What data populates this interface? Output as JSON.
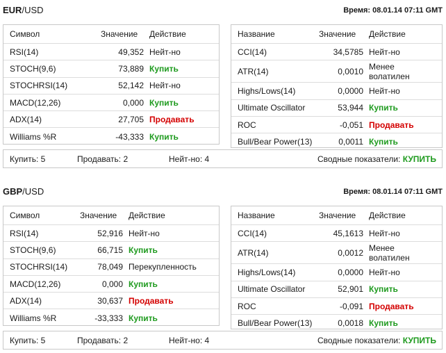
{
  "blocks": [
    {
      "pair_base": "EUR",
      "pair_quote": "/USD",
      "time": "Время: 08.01.14 07:11 GMT",
      "left": {
        "headers": {
          "name": "Символ",
          "value": "Значение",
          "action": "Действие"
        },
        "rows": [
          {
            "name": "RSI(14)",
            "value": "49,352",
            "action": "Нейт-но",
            "type": "neutral"
          },
          {
            "name": "STOCH(9,6)",
            "value": "73,889",
            "action": "Купить",
            "type": "buy"
          },
          {
            "name": "STOCHRSI(14)",
            "value": "52,142",
            "action": "Нейт-но",
            "type": "neutral"
          },
          {
            "name": "MACD(12,26)",
            "value": "0,000",
            "action": "Купить",
            "type": "buy"
          },
          {
            "name": "ADX(14)",
            "value": "27,705",
            "action": "Продавать",
            "type": "sell"
          },
          {
            "name": "Williams %R",
            "value": "-43,333",
            "action": "Купить",
            "type": "buy"
          }
        ]
      },
      "right": {
        "headers": {
          "name": "Название",
          "value": "Значение",
          "action": "Действие"
        },
        "rows": [
          {
            "name": "CCI(14)",
            "value": "34,5785",
            "action": "Нейт-но",
            "type": "neutral"
          },
          {
            "name": "ATR(14)",
            "value": "0,0010",
            "action": "Менее волатилен",
            "type": "neutral"
          },
          {
            "name": "Highs/Lows(14)",
            "value": "0,0000",
            "action": "Нейт-но",
            "type": "neutral"
          },
          {
            "name": "Ultimate Oscillator",
            "value": "53,944",
            "action": "Купить",
            "type": "buy"
          },
          {
            "name": "ROC",
            "value": "-0,051",
            "action": "Продавать",
            "type": "sell"
          },
          {
            "name": "Bull/Bear Power(13)",
            "value": "0,0011",
            "action": "Купить",
            "type": "buy"
          }
        ]
      },
      "summary": {
        "buy": "Купить: 5",
        "sell": "Продавать: 2",
        "neutral": "Нейт-но: 4",
        "final_label": "Сводные показатели:",
        "final_value": "КУПИТЬ"
      }
    },
    {
      "pair_base": "GBP",
      "pair_quote": "/USD",
      "time": "Время: 08.01.14 07:11 GMT",
      "left": {
        "headers": {
          "name": "Символ",
          "value": "Значение",
          "action": "Действие"
        },
        "rows": [
          {
            "name": "RSI(14)",
            "value": "52,916",
            "action": "Нейт-но",
            "type": "neutral"
          },
          {
            "name": "STOCH(9,6)",
            "value": "66,715",
            "action": "Купить",
            "type": "buy"
          },
          {
            "name": "STOCHRSI(14)",
            "value": "78,049",
            "action": "Перекупленность",
            "type": "neutral"
          },
          {
            "name": "MACD(12,26)",
            "value": "0,000",
            "action": "Купить",
            "type": "buy"
          },
          {
            "name": "ADX(14)",
            "value": "30,637",
            "action": "Продавать",
            "type": "sell"
          },
          {
            "name": "Williams %R",
            "value": "-33,333",
            "action": "Купить",
            "type": "buy"
          }
        ]
      },
      "right": {
        "headers": {
          "name": "Название",
          "value": "Значение",
          "action": "Действие"
        },
        "rows": [
          {
            "name": "CCI(14)",
            "value": "45,1613",
            "action": "Нейт-но",
            "type": "neutral"
          },
          {
            "name": "ATR(14)",
            "value": "0,0012",
            "action": "Менее волатилен",
            "type": "neutral"
          },
          {
            "name": "Highs/Lows(14)",
            "value": "0,0000",
            "action": "Нейт-но",
            "type": "neutral"
          },
          {
            "name": "Ultimate Oscillator",
            "value": "52,901",
            "action": "Купить",
            "type": "buy"
          },
          {
            "name": "ROC",
            "value": "-0,091",
            "action": "Продавать",
            "type": "sell"
          },
          {
            "name": "Bull/Bear Power(13)",
            "value": "0,0018",
            "action": "Купить",
            "type": "buy"
          }
        ]
      },
      "summary": {
        "buy": "Купить: 5",
        "sell": "Продавать: 2",
        "neutral": "Нейт-но: 4",
        "final_label": "Сводные показатели:",
        "final_value": "КУПИТЬ"
      }
    }
  ],
  "colors": {
    "buy": "#1e9a1e",
    "sell": "#d40000",
    "border": "#c8c8c8"
  }
}
